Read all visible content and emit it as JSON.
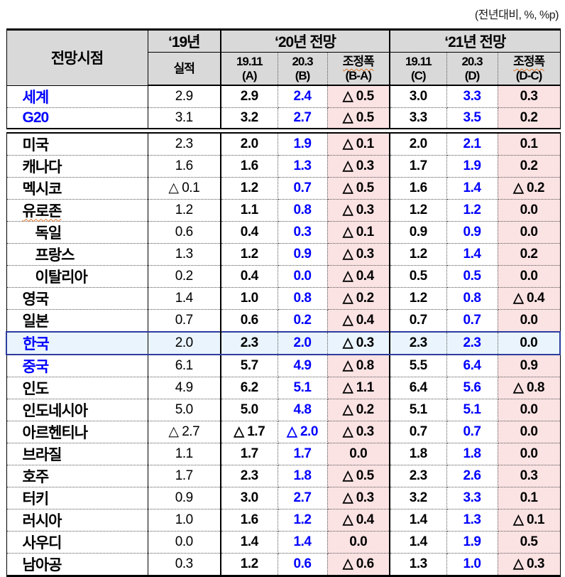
{
  "caption": "(전년대비, %, %p)",
  "colors": {
    "header_bg": "#d9d9d9",
    "adjustment_col_bg": "#fbe2e3",
    "forecast_value_text": "#0000ff",
    "korea_highlight_bg": "#e9f4fc",
    "korea_highlight_border": "#2e3c9e",
    "spellcheck_underline": "#e0742a"
  },
  "table": {
    "corner_label": "전망시점",
    "col_groups": [
      {
        "label": "‘19년",
        "subcols": [
          {
            "line1": "실적",
            "line2": ""
          }
        ]
      },
      {
        "label": "‘20년 전망",
        "subcols": [
          {
            "line1": "19.11",
            "line2": "(A)"
          },
          {
            "line1": "20.3",
            "line2": "(B)"
          },
          {
            "line1": "조정폭",
            "line2": "(B-A)",
            "wavy": true
          }
        ]
      },
      {
        "label": "‘21년 전망",
        "subcols": [
          {
            "line1": "19.11",
            "line2": "(C)"
          },
          {
            "line1": "20.3",
            "line2": "(D)"
          },
          {
            "line1": "조정폭",
            "line2": "(D-C)",
            "wavy": true
          }
        ]
      }
    ],
    "rows": [
      {
        "label": "세계",
        "style": "blue",
        "values": [
          "2.9",
          "2.9",
          "2.4",
          "△ 0.5",
          "3.0",
          "3.3",
          "0.3"
        ]
      },
      {
        "label": "G20",
        "style": "blue",
        "section_break_after": true,
        "values": [
          "3.1",
          "3.2",
          "2.7",
          "△ 0.5",
          "3.3",
          "3.5",
          "0.2"
        ]
      },
      {
        "label": "미국",
        "values": [
          "2.3",
          "2.0",
          "1.9",
          "△ 0.1",
          "2.0",
          "2.1",
          "0.1"
        ]
      },
      {
        "label": "캐나다",
        "values": [
          "1.6",
          "1.6",
          "1.3",
          "△ 0.3",
          "1.7",
          "1.9",
          "0.2"
        ]
      },
      {
        "label": "멕시코",
        "values": [
          "△ 0.1",
          "1.2",
          "0.7",
          "△ 0.5",
          "1.6",
          "1.4",
          "△ 0.2"
        ]
      },
      {
        "label": "유로존",
        "wavy": true,
        "values": [
          "1.2",
          "1.1",
          "0.8",
          "△ 0.3",
          "1.2",
          "1.2",
          "0.0"
        ]
      },
      {
        "label": "독일",
        "indent": 2,
        "values": [
          "0.6",
          "0.4",
          "0.3",
          "△ 0.1",
          "0.9",
          "0.9",
          "0.0"
        ]
      },
      {
        "label": "프랑스",
        "indent": 2,
        "values": [
          "1.3",
          "1.2",
          "0.9",
          "△ 0.3",
          "1.2",
          "1.4",
          "0.2"
        ]
      },
      {
        "label": "이탈리아",
        "indent": 2,
        "values": [
          "0.2",
          "0.4",
          "0.0",
          "△ 0.4",
          "0.5",
          "0.5",
          "0.0"
        ]
      },
      {
        "label": "영국",
        "values": [
          "1.4",
          "1.0",
          "0.8",
          "△ 0.2",
          "1.2",
          "0.8",
          "△ 0.4"
        ]
      },
      {
        "label": "일본",
        "values": [
          "0.7",
          "0.6",
          "0.2",
          "△ 0.4",
          "0.7",
          "0.7",
          "0.0"
        ]
      },
      {
        "label": "한국",
        "style": "blue",
        "highlight": true,
        "values": [
          "2.0",
          "2.3",
          "2.0",
          "△ 0.3",
          "2.3",
          "2.3",
          "0.0"
        ]
      },
      {
        "label": "중국",
        "style": "blue",
        "values": [
          "6.1",
          "5.7",
          "4.9",
          "△ 0.8",
          "5.5",
          "6.4",
          "0.9"
        ]
      },
      {
        "label": "인도",
        "values": [
          "4.9",
          "6.2",
          "5.1",
          "△ 1.1",
          "6.4",
          "5.6",
          "△ 0.8"
        ]
      },
      {
        "label": "인도네시아",
        "values": [
          "5.0",
          "5.0",
          "4.8",
          "△ 0.2",
          "5.1",
          "5.1",
          "0.0"
        ]
      },
      {
        "label": "아르헨티나",
        "values": [
          "△ 2.7",
          "△ 1.7",
          "△ 2.0",
          "△ 0.3",
          "0.7",
          "0.7",
          "0.0"
        ]
      },
      {
        "label": "브라질",
        "values": [
          "1.1",
          "1.7",
          "1.7",
          "0.0",
          "1.8",
          "1.8",
          "0.0"
        ]
      },
      {
        "label": "호주",
        "values": [
          "1.7",
          "2.3",
          "1.8",
          "△ 0.5",
          "2.3",
          "2.6",
          "0.3"
        ]
      },
      {
        "label": "터키",
        "values": [
          "0.9",
          "3.0",
          "2.7",
          "△ 0.3",
          "3.2",
          "3.3",
          "0.1"
        ]
      },
      {
        "label": "러시아",
        "values": [
          "1.0",
          "1.6",
          "1.2",
          "△ 0.4",
          "1.4",
          "1.3",
          "△ 0.1"
        ]
      },
      {
        "label": "사우디",
        "values": [
          "0.0",
          "1.4",
          "1.4",
          "0.0",
          "1.4",
          "1.9",
          "0.5"
        ]
      },
      {
        "label": "남아공",
        "values": [
          "0.3",
          "1.2",
          "0.6",
          "△ 0.6",
          "1.3",
          "1.0",
          "△ 0.3"
        ]
      }
    ]
  }
}
